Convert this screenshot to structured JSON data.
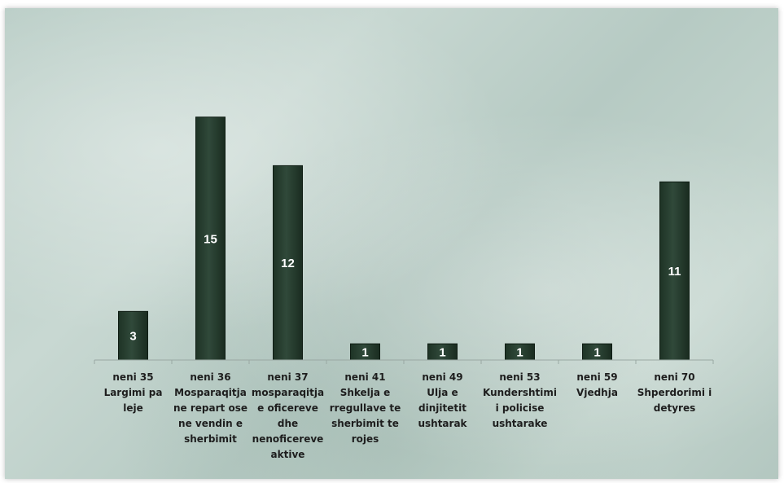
{
  "chart_data": {
    "type": "bar",
    "categories": [
      [
        "neni 35",
        "Largimi pa",
        "leje"
      ],
      [
        "neni 36",
        "Mosparaqitja",
        "ne repart ose",
        "ne vendin e",
        "sherbimit"
      ],
      [
        "neni 37",
        "mosparaqitja",
        "e oficereve",
        "dhe",
        "nenoficereve",
        "aktive"
      ],
      [
        "neni 41",
        "Shkelja e",
        "rregullave te",
        "sherbimit te",
        "rojes"
      ],
      [
        "neni 49",
        "Ulja e",
        "dinjitetit",
        "ushtarak"
      ],
      [
        "neni 53",
        "Kundershtimi",
        "i policise",
        "ushtarake"
      ],
      [
        "neni 59",
        "Vjedhja"
      ],
      [
        "neni 70",
        "Shperdorimi i",
        "detyres"
      ]
    ],
    "values": [
      3,
      15,
      12,
      1,
      1,
      1,
      1,
      11
    ],
    "value_labels": [
      "3",
      "15",
      "12",
      "1",
      "1",
      "1",
      "1",
      "11"
    ],
    "ylim": [
      0,
      17.2
    ],
    "grid": false,
    "legend": "none",
    "bar_color": "#28402f",
    "bar_edge_color": "#0f1d14",
    "axis_color": "#9aa8a3"
  }
}
